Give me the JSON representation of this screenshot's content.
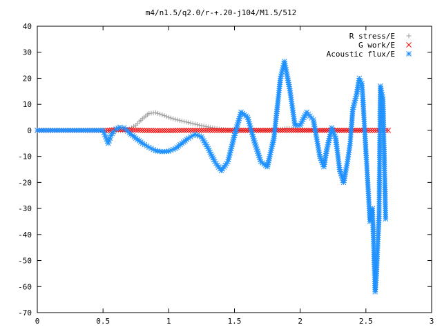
{
  "chart_data": {
    "type": "scatter",
    "title": "m4/n1.5/q2.0/r-+.20-j104/M1.5/512",
    "xlabel": "",
    "ylabel": "",
    "xlim": [
      0,
      3
    ],
    "ylim": [
      -70,
      40
    ],
    "x_ticks": [
      0,
      0.5,
      1,
      1.5,
      2,
      2.5,
      3
    ],
    "x_tick_labels": [
      "0",
      "0.5",
      "1",
      "1.5",
      "2",
      "2.5",
      "3"
    ],
    "y_ticks": [
      40,
      30,
      20,
      10,
      0,
      -10,
      -20,
      -30,
      -40,
      -50,
      -60,
      -70
    ],
    "y_tick_labels": [
      "40",
      "30",
      "20",
      "10",
      "0",
      "-10",
      "-20",
      "-30",
      "-40",
      "-50",
      "-60",
      "-70"
    ],
    "grid": false,
    "legend_position": "top-right",
    "series": [
      {
        "name": "R stress/E",
        "marker": "plus",
        "color": "#a0a0a0",
        "points": [
          [
            0.55,
            0
          ],
          [
            0.65,
            0
          ],
          [
            0.7,
            0.5
          ],
          [
            0.75,
            2
          ],
          [
            0.8,
            4.5
          ],
          [
            0.85,
            6.5
          ],
          [
            0.9,
            6.8
          ],
          [
            0.95,
            6
          ],
          [
            1.0,
            5
          ],
          [
            1.05,
            4.2
          ],
          [
            1.1,
            3.6
          ],
          [
            1.15,
            3
          ],
          [
            1.2,
            2.4
          ],
          [
            1.25,
            1.8
          ],
          [
            1.3,
            1.3
          ],
          [
            1.35,
            0.8
          ],
          [
            1.4,
            0.4
          ],
          [
            1.45,
            0.1
          ],
          [
            1.55,
            0
          ],
          [
            1.7,
            0
          ],
          [
            1.85,
            0.3
          ],
          [
            1.9,
            0.8
          ],
          [
            2.0,
            0.2
          ],
          [
            2.1,
            0
          ],
          [
            2.3,
            0
          ],
          [
            2.5,
            0
          ]
        ]
      },
      {
        "name": "G work/E",
        "marker": "cross",
        "color": "#ff0000",
        "points": [
          [
            0,
            0
          ],
          [
            0.2,
            0
          ],
          [
            0.4,
            0
          ],
          [
            0.55,
            0
          ],
          [
            0.6,
            0.3
          ],
          [
            0.7,
            0.2
          ],
          [
            0.8,
            0
          ],
          [
            0.9,
            -0.1
          ],
          [
            1.0,
            -0.1
          ],
          [
            1.1,
            0
          ],
          [
            1.2,
            0
          ],
          [
            1.3,
            0
          ],
          [
            1.4,
            0
          ],
          [
            1.5,
            0
          ],
          [
            1.6,
            0
          ],
          [
            1.7,
            0
          ],
          [
            1.8,
            0
          ],
          [
            1.9,
            0
          ],
          [
            2.0,
            0
          ],
          [
            2.1,
            0
          ],
          [
            2.2,
            0
          ],
          [
            2.3,
            0
          ],
          [
            2.4,
            0
          ],
          [
            2.5,
            0
          ],
          [
            2.6,
            0
          ],
          [
            2.67,
            0
          ]
        ]
      },
      {
        "name": "Acoustic flux/E",
        "marker": "star",
        "color": "#1e90ff",
        "points": [
          [
            0,
            0
          ],
          [
            0.1,
            0
          ],
          [
            0.2,
            0
          ],
          [
            0.3,
            0
          ],
          [
            0.4,
            0
          ],
          [
            0.5,
            0
          ],
          [
            0.54,
            -5
          ],
          [
            0.56,
            -2
          ],
          [
            0.58,
            -0.5
          ],
          [
            0.6,
            0.5
          ],
          [
            0.63,
            1.2
          ],
          [
            0.66,
            1
          ],
          [
            0.7,
            -1
          ],
          [
            0.75,
            -3
          ],
          [
            0.8,
            -5
          ],
          [
            0.85,
            -6.5
          ],
          [
            0.9,
            -7.8
          ],
          [
            0.95,
            -8.2
          ],
          [
            1.0,
            -8
          ],
          [
            1.05,
            -7
          ],
          [
            1.1,
            -5
          ],
          [
            1.15,
            -3
          ],
          [
            1.2,
            -1.5
          ],
          [
            1.25,
            -2.5
          ],
          [
            1.3,
            -7
          ],
          [
            1.35,
            -12
          ],
          [
            1.4,
            -15.5
          ],
          [
            1.45,
            -12
          ],
          [
            1.5,
            -2
          ],
          [
            1.55,
            7
          ],
          [
            1.6,
            5
          ],
          [
            1.65,
            -4
          ],
          [
            1.7,
            -12
          ],
          [
            1.75,
            -14
          ],
          [
            1.8,
            -3
          ],
          [
            1.85,
            20
          ],
          [
            1.88,
            26.5
          ],
          [
            1.92,
            16
          ],
          [
            1.96,
            2
          ],
          [
            2.0,
            2
          ],
          [
            2.05,
            7
          ],
          [
            2.1,
            4
          ],
          [
            2.15,
            -10
          ],
          [
            2.18,
            -14
          ],
          [
            2.2,
            -8
          ],
          [
            2.24,
            1
          ],
          [
            2.27,
            -3
          ],
          [
            2.3,
            -15
          ],
          [
            2.33,
            -20
          ],
          [
            2.36,
            -12
          ],
          [
            2.38,
            -5
          ],
          [
            2.4,
            8
          ],
          [
            2.43,
            14
          ],
          [
            2.45,
            20
          ],
          [
            2.47,
            18
          ],
          [
            2.5,
            -8
          ],
          [
            2.52,
            -25
          ],
          [
            2.53,
            -35
          ],
          [
            2.55,
            -30
          ],
          [
            2.57,
            -62
          ],
          [
            2.58,
            -55
          ],
          [
            2.6,
            -33
          ],
          [
            2.61,
            17
          ],
          [
            2.63,
            12
          ],
          [
            2.65,
            -34
          ]
        ]
      }
    ]
  }
}
